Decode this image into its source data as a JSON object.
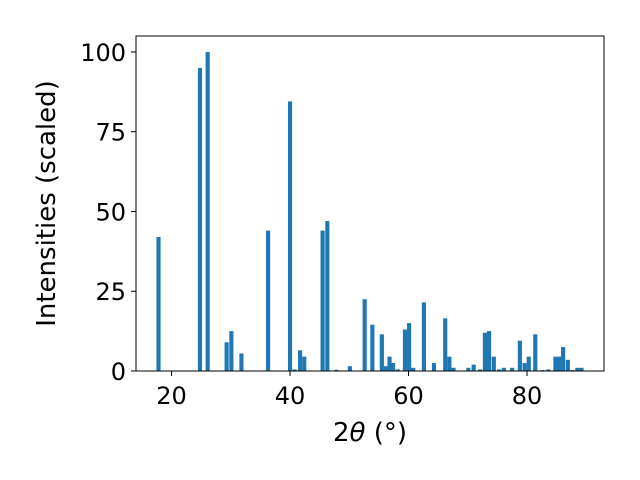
{
  "chart_data": {
    "type": "bar",
    "xlabel_main": "2",
    "xlabel_theta": "θ",
    "xlabel_unit": " (°)",
    "ylabel": "Intensities (scaled)",
    "xlim": [
      14,
      93
    ],
    "ylim": [
      0,
      105
    ],
    "xticks": [
      20,
      40,
      60,
      80
    ],
    "yticks": [
      0,
      25,
      50,
      75,
      100
    ],
    "bar_color": "#1f77b4",
    "bar_width": 0.7,
    "x": [
      17.8,
      24.8,
      26.1,
      29.3,
      30.1,
      31.8,
      36.3,
      40.0,
      40.8,
      41.7,
      42.4,
      45.5,
      46.3,
      47.8,
      50.1,
      52.6,
      53.9,
      55.5,
      56.2,
      56.8,
      57.4,
      58.2,
      59.4,
      60.1,
      60.8,
      62.6,
      64.3,
      66.2,
      66.9,
      67.6,
      70.1,
      71.0,
      72.1,
      72.9,
      73.6,
      74.4,
      75.3,
      76.1,
      77.5,
      78.8,
      79.6,
      80.3,
      81.4,
      82.6,
      83.6,
      84.8,
      85.4,
      86.1,
      86.9,
      87.7,
      88.5,
      89.2
    ],
    "values": [
      42,
      95,
      100,
      9,
      12.5,
      5.5,
      44,
      84.5,
      0.5,
      6.5,
      4.5,
      44,
      47,
      0.4,
      1.5,
      22.5,
      14.5,
      11.5,
      1.5,
      4.5,
      2.5,
      0.5,
      13,
      15,
      1,
      21.5,
      2.5,
      16.5,
      4.5,
      1,
      1,
      2,
      0.5,
      12,
      12.5,
      4.5,
      0.5,
      1,
      1,
      9.5,
      2.5,
      4.5,
      11.5,
      0.3,
      0.5,
      4.5,
      4.5,
      7.5,
      3.5,
      0.3,
      1,
      1
    ]
  }
}
